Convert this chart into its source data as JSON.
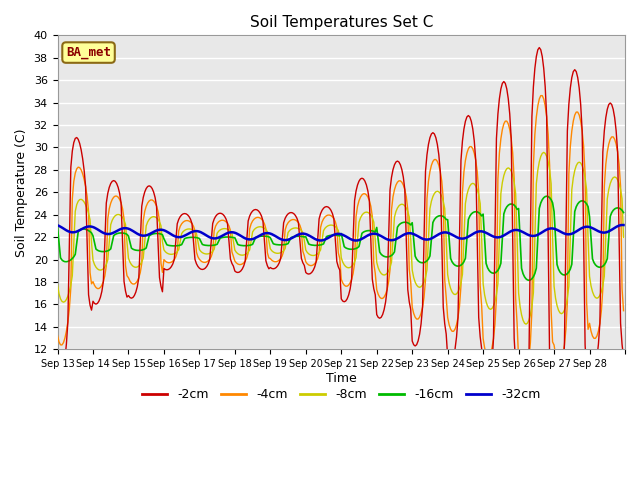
{
  "title": "Soil Temperatures Set C",
  "xlabel": "Time",
  "ylabel": "Soil Temperature (C)",
  "ylim": [
    12,
    40
  ],
  "yticks": [
    12,
    14,
    16,
    18,
    20,
    22,
    24,
    26,
    28,
    30,
    32,
    34,
    36,
    38,
    40
  ],
  "plot_bg_color": "#e8e8e8",
  "fig_bg_color": "#ffffff",
  "grid_color": "#ffffff",
  "annotation_text": "BA_met",
  "annotation_box_color": "#ffff99",
  "annotation_border_color": "#8B6914",
  "annotation_text_color": "#8B0000",
  "colors": {
    "-2cm": "#cc0000",
    "-4cm": "#ff8800",
    "-8cm": "#cccc00",
    "-16cm": "#00bb00",
    "-32cm": "#0000cc"
  },
  "x_tick_labels": [
    "Sep 13",
    "Sep 14",
    "Sep 15",
    "Sep 16",
    "Sep 17",
    "Sep 18",
    "Sep 19",
    "Sep 20",
    "Sep 21",
    "Sep 22",
    "Sep 23",
    "Sep 24",
    "Sep 25",
    "Sep 26",
    "Sep 27",
    "Sep 28"
  ],
  "hours_per_day": 24,
  "days": 16
}
